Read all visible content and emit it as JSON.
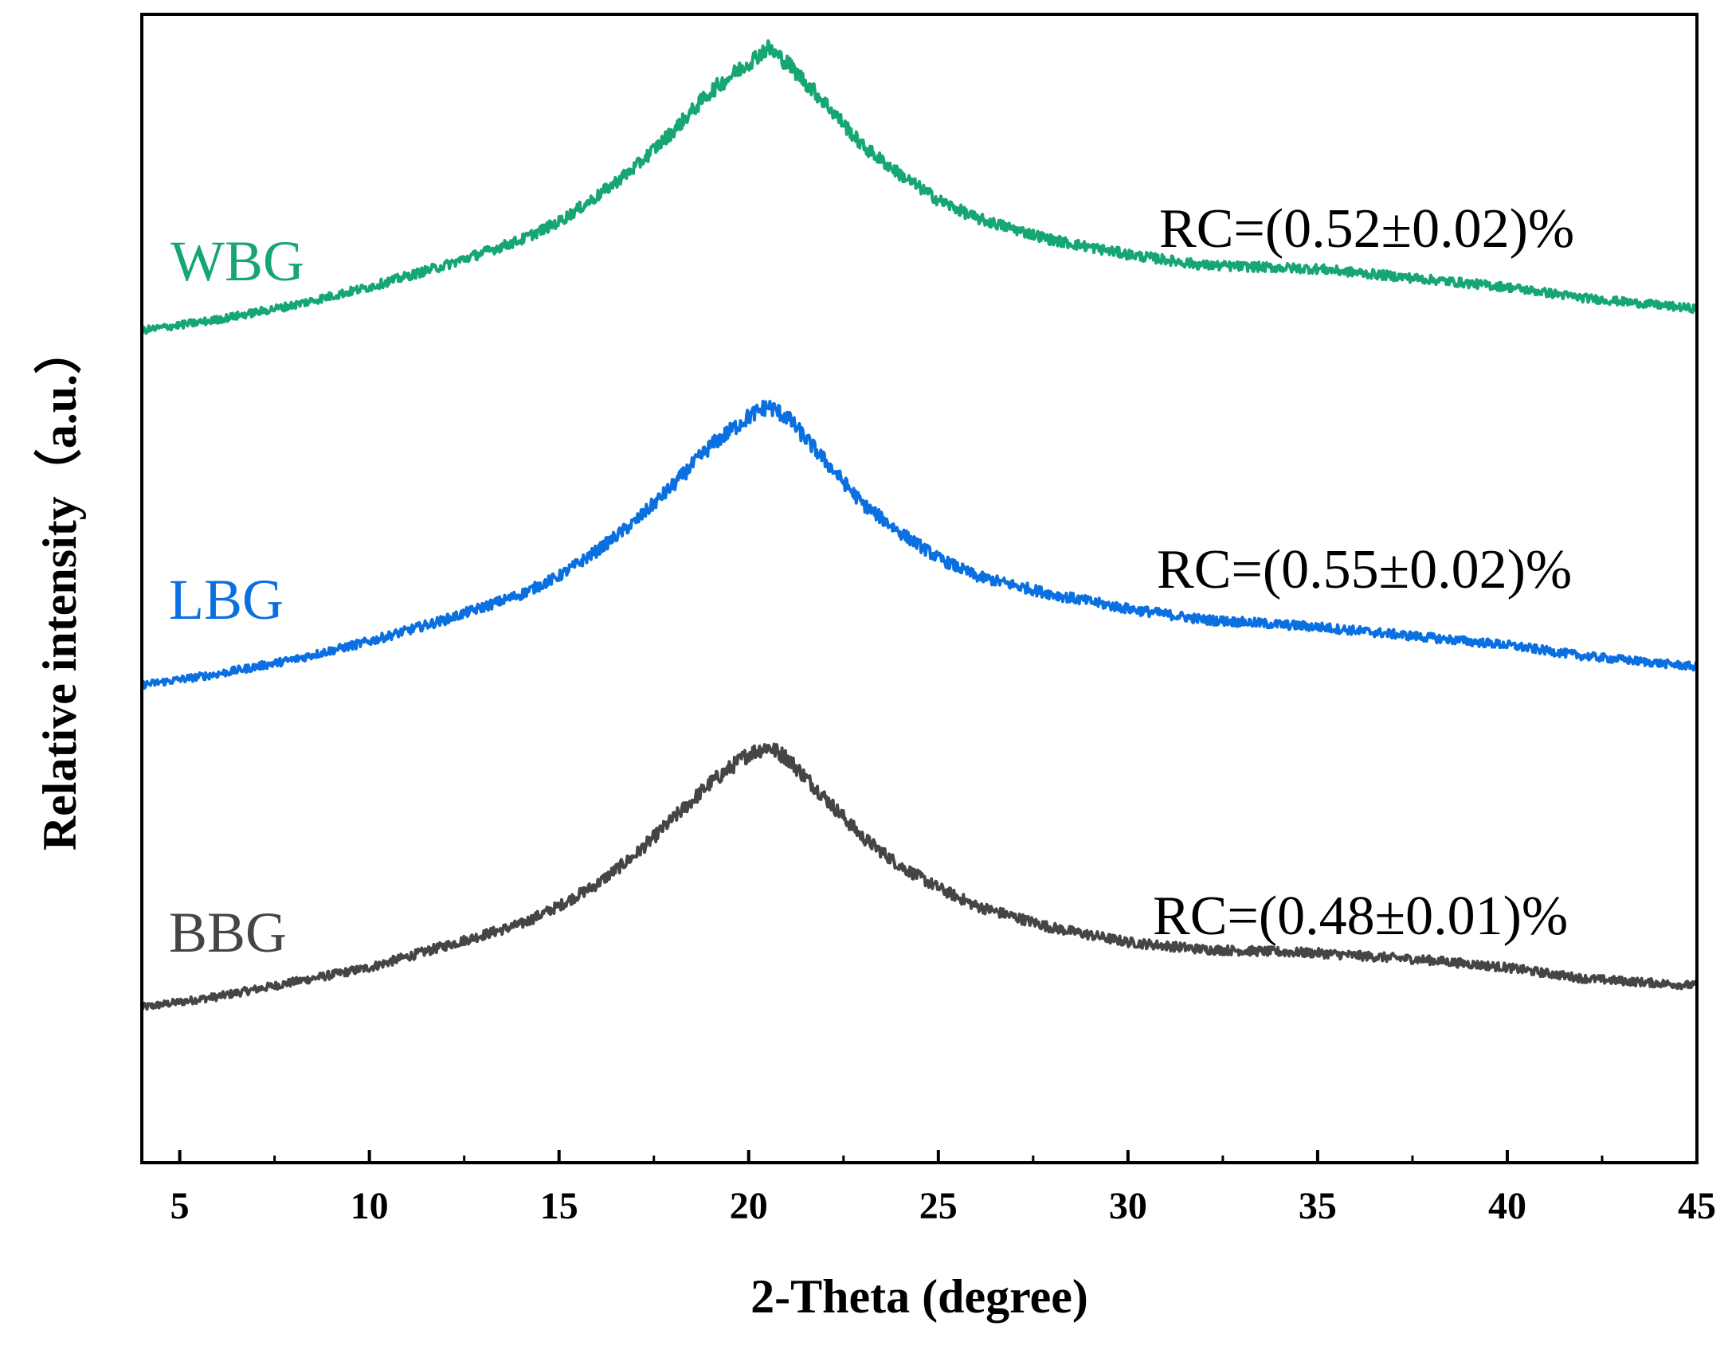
{
  "chart_data": {
    "type": "line",
    "title": "",
    "xlabel": "2-Theta (degree)",
    "ylabel": "Relative intensity（a.u.）",
    "xlim": [
      4,
      45
    ],
    "x_ticks": [
      5,
      10,
      15,
      20,
      25,
      30,
      35,
      40,
      45
    ],
    "x_tick_labels": [
      "5",
      "10",
      "15",
      "20",
      "25",
      "30",
      "35",
      "40",
      "45"
    ],
    "y_ticks_shown": false,
    "grid": false,
    "series": [
      {
        "name": "WBG",
        "color": "#15a672",
        "annotation": "RC=(0.52±0.02)%",
        "offset": 2.0,
        "x": [
          4,
          6,
          8,
          10,
          12,
          14,
          15,
          16,
          17,
          18,
          19,
          20,
          20.5,
          21,
          22,
          23,
          24,
          25,
          26,
          28,
          30,
          32,
          35,
          38,
          40,
          42,
          45
        ],
        "profile": [
          0.0,
          0.03,
          0.07,
          0.12,
          0.18,
          0.25,
          0.3,
          0.37,
          0.45,
          0.55,
          0.66,
          0.74,
          0.78,
          0.74,
          0.63,
          0.51,
          0.43,
          0.36,
          0.31,
          0.25,
          0.21,
          0.18,
          0.17,
          0.14,
          0.12,
          0.09,
          0.06
        ]
      },
      {
        "name": "LBG",
        "color": "#0a6fe0",
        "annotation": "RC=(0.55±0.02)%",
        "offset": 1.0,
        "x": [
          4,
          6,
          8,
          10,
          12,
          14,
          15,
          16,
          17,
          18,
          19,
          20,
          20.5,
          21,
          22,
          23,
          24,
          25,
          26,
          28,
          30,
          32,
          35,
          38,
          40,
          42,
          45
        ],
        "profile": [
          0.0,
          0.03,
          0.07,
          0.12,
          0.18,
          0.25,
          0.3,
          0.37,
          0.45,
          0.55,
          0.66,
          0.74,
          0.77,
          0.74,
          0.62,
          0.5,
          0.42,
          0.35,
          0.3,
          0.25,
          0.21,
          0.18,
          0.16,
          0.13,
          0.11,
          0.08,
          0.05
        ]
      },
      {
        "name": "BBG",
        "color": "#454545",
        "annotation": "RC=(0.48±0.01)%",
        "offset": 0.0,
        "x": [
          4,
          6,
          8,
          10,
          12,
          14,
          15,
          16,
          17,
          18,
          19,
          20,
          20.5,
          21,
          22,
          23,
          24,
          25,
          26,
          28,
          30,
          32,
          35,
          38,
          40,
          42,
          45
        ],
        "profile": [
          0.0,
          0.03,
          0.07,
          0.11,
          0.17,
          0.23,
          0.28,
          0.34,
          0.42,
          0.52,
          0.62,
          0.7,
          0.72,
          0.69,
          0.58,
          0.47,
          0.39,
          0.33,
          0.28,
          0.22,
          0.18,
          0.16,
          0.15,
          0.13,
          0.11,
          0.08,
          0.06
        ]
      }
    ]
  }
}
